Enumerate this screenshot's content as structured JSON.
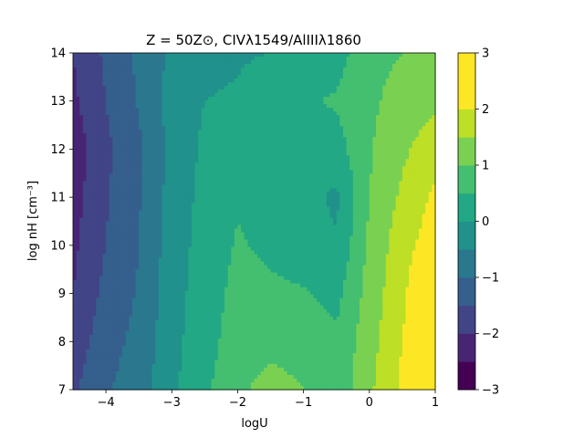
{
  "chart_data": {
    "type": "heatmap",
    "subtype": "filled-contour",
    "title": "Z = 50Z⊙, CIVλ1549/AlIIIλ1860",
    "xlabel": "logU",
    "ylabel": "log nH [cm⁻³]",
    "xlim": [
      -4.5,
      1
    ],
    "ylim": [
      7,
      14
    ],
    "x_ticks": [
      -4,
      -3,
      -2,
      -1,
      0,
      1
    ],
    "x_tick_labels": [
      "−4",
      "−3",
      "−2",
      "−1",
      "0",
      "1"
    ],
    "y_ticks": [
      7,
      8,
      9,
      10,
      11,
      12,
      13,
      14
    ],
    "y_tick_labels": [
      "7",
      "8",
      "9",
      "10",
      "11",
      "12",
      "13",
      "14"
    ],
    "colorbar": {
      "range": [
        -3,
        3
      ],
      "levels": [
        -3,
        -2.5,
        -2,
        -1.5,
        -1,
        -0.5,
        0,
        0.5,
        1,
        1.5,
        2,
        2.5,
        3
      ],
      "colors": [
        "#440154",
        "#482475",
        "#414487",
        "#355f8d",
        "#2a788e",
        "#21918c",
        "#22a884",
        "#44bf70",
        "#7ad151",
        "#bddf26",
        "#fde725",
        "#fde725"
      ],
      "tick_values": [
        -3,
        -2,
        -1,
        0,
        1,
        2,
        3
      ],
      "tick_labels": [
        "−3",
        "−2",
        "−1",
        "0",
        "1",
        "2",
        "3"
      ]
    },
    "x": [
      -4.5,
      -4.0,
      -3.5,
      -3.0,
      -2.5,
      -2.0,
      -1.5,
      -1.0,
      -0.5,
      0.0,
      0.5,
      1.0
    ],
    "y": [
      7,
      8,
      9,
      10,
      11,
      12,
      13,
      14
    ],
    "z": [
      [
        -1.6,
        -1.05,
        -0.75,
        -0.1,
        0.4,
        0.9,
        1.2,
        1.0,
        0.6,
        1.4,
        2.1,
        2.9
      ],
      [
        -1.8,
        -1.2,
        -0.85,
        -0.15,
        0.3,
        0.75,
        0.85,
        0.8,
        0.6,
        1.3,
        2.0,
        2.8
      ],
      [
        -2.0,
        -1.35,
        -0.95,
        -0.2,
        0.25,
        0.65,
        0.6,
        0.55,
        0.35,
        1.2,
        1.9,
        2.7
      ],
      [
        -2.1,
        -1.5,
        -1.0,
        -0.25,
        0.2,
        0.55,
        0.4,
        0.2,
        0.05,
        1.1,
        1.8,
        2.3
      ],
      [
        -2.2,
        -1.55,
        -1.05,
        -0.3,
        0.15,
        0.45,
        0.35,
        0.2,
        -0.1,
        1.0,
        1.6,
        2.1
      ],
      [
        -2.3,
        -1.6,
        -1.1,
        -0.35,
        0.1,
        0.35,
        0.3,
        0.3,
        0.3,
        0.95,
        1.4,
        1.8
      ],
      [
        -2.1,
        -1.5,
        -0.95,
        -0.3,
        0.0,
        0.05,
        0.3,
        0.45,
        0.55,
        0.9,
        1.2,
        1.4
      ],
      [
        -2.0,
        -1.4,
        -0.9,
        -0.4,
        -0.1,
        -0.05,
        0.0,
        0.05,
        0.3,
        0.85,
        1.0,
        1.2
      ]
    ]
  }
}
